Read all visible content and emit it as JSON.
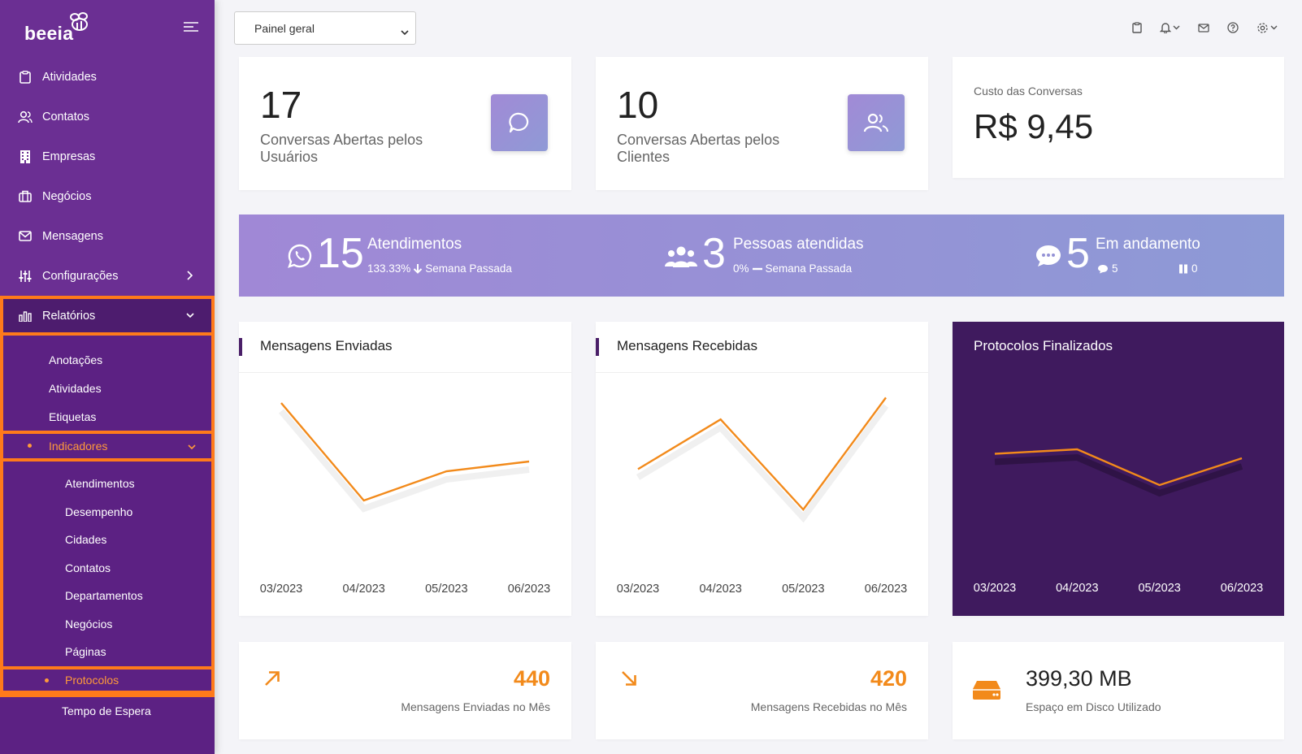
{
  "app": {
    "logo_text": "beeia",
    "logo_icon": "bee-icon"
  },
  "sidebar": {
    "items": [
      {
        "label": "Atividades",
        "icon": "clipboard-icon"
      },
      {
        "label": "Contatos",
        "icon": "users-icon"
      },
      {
        "label": "Empresas",
        "icon": "building-icon"
      },
      {
        "label": "Negócios",
        "icon": "briefcase-icon"
      },
      {
        "label": "Mensagens",
        "icon": "mail-icon"
      },
      {
        "label": "Configurações",
        "icon": "sliders-icon"
      },
      {
        "label": "Relatórios",
        "icon": "bar-chart-icon"
      }
    ],
    "reports_sub": [
      "Anotações",
      "Atividades",
      "Etiquetas"
    ],
    "indicators_label": "Indicadores",
    "indicators_sub": [
      "Atendimentos",
      "Desempenho",
      "Cidades",
      "Contatos",
      "Departamentos",
      "Negócios",
      "Páginas",
      "Protocolos",
      "Tempo de Espera"
    ]
  },
  "toolbar": {
    "select_value": "Painel geral"
  },
  "cards": {
    "user_convs": {
      "value": "17",
      "label": "Conversas Abertas pelos Usuários"
    },
    "client_convs": {
      "value": "10",
      "label": "Conversas Abertas pelos Clientes"
    },
    "cost": {
      "label": "Custo das Conversas",
      "value": "R$ 9,45"
    }
  },
  "banner": {
    "attend": {
      "value": "15",
      "label": "Atendimentos",
      "pct": "133.33%",
      "sub": "Semana Passada"
    },
    "people": {
      "value": "3",
      "label": "Pessoas atendidas",
      "pct": "0%",
      "sub": "Semana Passada"
    },
    "progress": {
      "value": "5",
      "label": "Em andamento",
      "chat_count": "5",
      "pause_count": "0"
    }
  },
  "chart_data": [
    {
      "type": "line",
      "title": "Mensagens Enviadas",
      "categories": [
        "03/2023",
        "04/2023",
        "05/2023",
        "06/2023"
      ],
      "values": [
        100,
        40,
        58,
        64
      ],
      "ylim": [
        0,
        110
      ],
      "color": "#f28a1b"
    },
    {
      "type": "line",
      "title": "Mensagens Recebidas",
      "categories": [
        "03/2023",
        "04/2023",
        "05/2023",
        "06/2023"
      ],
      "values": [
        62,
        94,
        36,
        108
      ],
      "ylim": [
        0,
        115
      ],
      "color": "#f28a1b"
    },
    {
      "type": "line",
      "title": "Protocolos Finalizados",
      "categories": [
        "03/2023",
        "04/2023",
        "05/2023",
        "06/2023"
      ],
      "values": [
        50,
        52,
        36,
        48
      ],
      "ylim": [
        0,
        80
      ],
      "color": "#f28a1b"
    }
  ],
  "bottom": {
    "sent": {
      "value": "440",
      "label": "Mensagens Enviadas no Mês"
    },
    "received": {
      "value": "420",
      "label": "Mensagens Recebidas no Mês"
    },
    "disk": {
      "value": "399,30 MB",
      "label": "Espaço em Disco Utilizado"
    }
  },
  "colors": {
    "sidebar": "#6b2f93",
    "accent": "#f28a1b",
    "highlight": "#ff7a1a",
    "dark_card": "#3f1a5e"
  }
}
